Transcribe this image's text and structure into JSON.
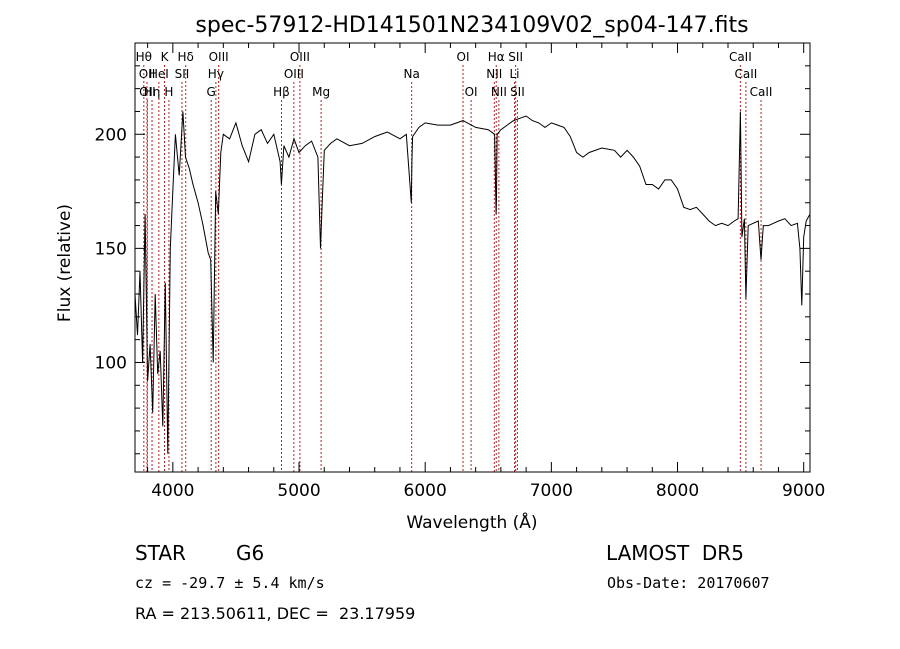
{
  "chart_data": {
    "type": "line",
    "title": "spec-57912-HD141501N234109V02_sp04-147.fits",
    "xlabel": "Wavelength (Å)",
    "ylabel": "Flux (relative)",
    "xlim": [
      3700,
      9050
    ],
    "ylim": [
      52,
      240
    ],
    "xticks": [
      4000,
      5000,
      6000,
      7000,
      8000,
      9000
    ],
    "yticks": [
      100,
      150,
      200
    ],
    "grid": false,
    "line_color": "#000000",
    "marker_color": "#b22222",
    "series": [
      {
        "x": [
          3700,
          3720,
          3740,
          3760,
          3780,
          3800,
          3820,
          3840,
          3860,
          3880,
          3900,
          3920,
          3940,
          3960,
          3980,
          4000,
          4020,
          4050,
          4080,
          4100,
          4130,
          4160,
          4200,
          4240,
          4280,
          4300,
          4320,
          4340,
          4360,
          4380,
          4400,
          4450,
          4500,
          4550,
          4600,
          4650,
          4700,
          4750,
          4800,
          4850,
          4860,
          4880,
          4920,
          4960,
          5000,
          5050,
          5100,
          5150,
          5170,
          5185,
          5200,
          5250,
          5300,
          5400,
          5500,
          5600,
          5700,
          5800,
          5850,
          5890,
          5895,
          5900,
          5950,
          6000,
          6100,
          6200,
          6300,
          6400,
          6500,
          6550,
          6562,
          6565,
          6570,
          6600,
          6650,
          6700,
          6750,
          6800,
          6850,
          6900,
          6950,
          7000,
          7050,
          7100,
          7150,
          7200,
          7250,
          7300,
          7400,
          7500,
          7550,
          7600,
          7650,
          7700,
          7750,
          7800,
          7850,
          7900,
          7950,
          8000,
          8050,
          8100,
          8150,
          8200,
          8250,
          8300,
          8350,
          8400,
          8450,
          8480,
          8498,
          8510,
          8530,
          8542,
          8560,
          8600,
          8640,
          8662,
          8680,
          8720,
          8760,
          8800,
          8850,
          8900,
          8950,
          8970,
          8985,
          9000,
          9020,
          9050
        ],
        "y": [
          130,
          112,
          140,
          100,
          165,
          92,
          108,
          78,
          130,
          95,
          105,
          72,
          135,
          60,
          150,
          176,
          200,
          182,
          210,
          190,
          185,
          178,
          170,
          160,
          148,
          145,
          100,
          175,
          165,
          192,
          200,
          198,
          205,
          195,
          188,
          200,
          202,
          196,
          200,
          188,
          178,
          195,
          190,
          198,
          192,
          195,
          197,
          190,
          150,
          172,
          193,
          196,
          198,
          195,
          196,
          199,
          201,
          198,
          200,
          170,
          188,
          199,
          203,
          205,
          204,
          204,
          206,
          203,
          202,
          200,
          165,
          172,
          200,
          202,
          204,
          206,
          207,
          208,
          206,
          205,
          203,
          205,
          204,
          203,
          199,
          192,
          190,
          192,
          194,
          193,
          190,
          193,
          190,
          186,
          178,
          178,
          176,
          180,
          180,
          176,
          168,
          167,
          168,
          165,
          162,
          160,
          161,
          160,
          162,
          163,
          210,
          155,
          163,
          128,
          160,
          161,
          162,
          145,
          160,
          160,
          161,
          162,
          163,
          160,
          161,
          150,
          125,
          155,
          162,
          165
        ]
      }
    ],
    "lines": [
      {
        "x": 3770,
        "label": "Hθ",
        "row": 0
      },
      {
        "x": 3795,
        "label": "OII",
        "row": 1
      },
      {
        "x": 3798,
        "label": "OII",
        "row": 2
      },
      {
        "x": 3835,
        "label": "Hη",
        "row": 2
      },
      {
        "x": 3889,
        "label": "HeI",
        "row": 1
      },
      {
        "x": 3934,
        "label": "K",
        "row": 0
      },
      {
        "x": 3969,
        "label": "H",
        "row": 2
      },
      {
        "x": 4072,
        "label": "SII",
        "row": 1
      },
      {
        "x": 4102,
        "label": "Hδ",
        "row": 0
      },
      {
        "x": 4304,
        "label": "G",
        "row": 2
      },
      {
        "x": 4341,
        "label": "Hγ",
        "row": 1
      },
      {
        "x": 4363,
        "label": "OIII",
        "row": 0
      },
      {
        "x": 4861,
        "label": "Hβ",
        "row": 2
      },
      {
        "x": 4959,
        "label": "OIII",
        "row": 1
      },
      {
        "x": 5007,
        "label": "OIII",
        "row": 0
      },
      {
        "x": 5175,
        "label": "Mg",
        "row": 2
      },
      {
        "x": 5893,
        "label": "Na",
        "row": 1
      },
      {
        "x": 6300,
        "label": "OI",
        "row": 0
      },
      {
        "x": 6364,
        "label": "OI",
        "row": 2
      },
      {
        "x": 6548,
        "label": "NII",
        "row": 1
      },
      {
        "x": 6563,
        "label": "Hα",
        "row": 0
      },
      {
        "x": 6584,
        "label": "NII",
        "row": 2
      },
      {
        "x": 6708,
        "label": "Li",
        "row": 1
      },
      {
        "x": 6717,
        "label": "SII",
        "row": 0
      },
      {
        "x": 6731,
        "label": "SII",
        "row": 2
      },
      {
        "x": 8498,
        "label": "CaII",
        "row": 0
      },
      {
        "x": 8542,
        "label": "CaII",
        "row": 1
      },
      {
        "x": 8662,
        "label": "CaII",
        "row": 2
      }
    ]
  },
  "footer": {
    "class_label": "STAR",
    "subclass": "G6",
    "survey": "LAMOST  DR5",
    "velocity": "cz = -29.7 ± 5.4 km/s",
    "obs_date": "Obs-Date: 20170607",
    "coords": "RA = 213.50611, DEC =  23.17959"
  }
}
